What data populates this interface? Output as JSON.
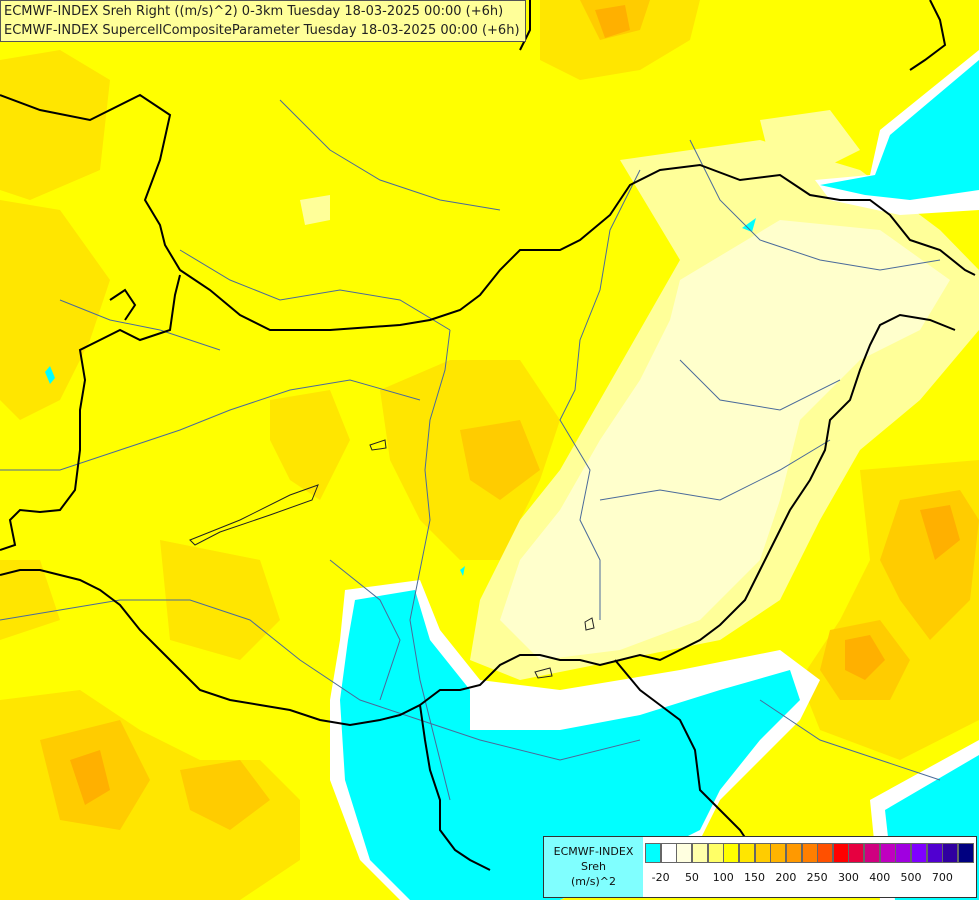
{
  "title": {
    "line1": "ECMWF-INDEX Sreh Right ((m/s)^2) 0-3km Tuesday 18-03-2025 00:00 (+6h)",
    "line2": "ECMWF-INDEX SupercellCompositeParameter Tuesday 18-03-2025 00:00 (+6h)"
  },
  "legend": {
    "label_lines": [
      "ECMWF-INDEX",
      "Sreh",
      "(m/s)^2"
    ],
    "swatches": [
      "#00ffff",
      "#ffffff",
      "#ffffe0",
      "#ffffaa",
      "#ffff66",
      "#ffff00",
      "#ffe600",
      "#ffcc00",
      "#ffb400",
      "#ff9900",
      "#ff7f00",
      "#ff5000",
      "#ff0000",
      "#e60040",
      "#d00080",
      "#c000c0",
      "#a000e0",
      "#7f00ff",
      "#5000d0",
      "#3000a0",
      "#000080"
    ],
    "ticks": [
      "-20",
      "50",
      "100",
      "150",
      "200",
      "250",
      "300",
      "400",
      "500",
      "700"
    ]
  },
  "colors": {
    "yellow": "#ffff00",
    "gold": "#ffe600",
    "orange": "#ffcc00",
    "dark_orange": "#ffb000",
    "pale_yellow": "#ffff99",
    "cream": "#ffffcc",
    "cyan": "#00ffff",
    "white": "#ffffff",
    "border": "#000000",
    "river": "#4a6a9a"
  }
}
